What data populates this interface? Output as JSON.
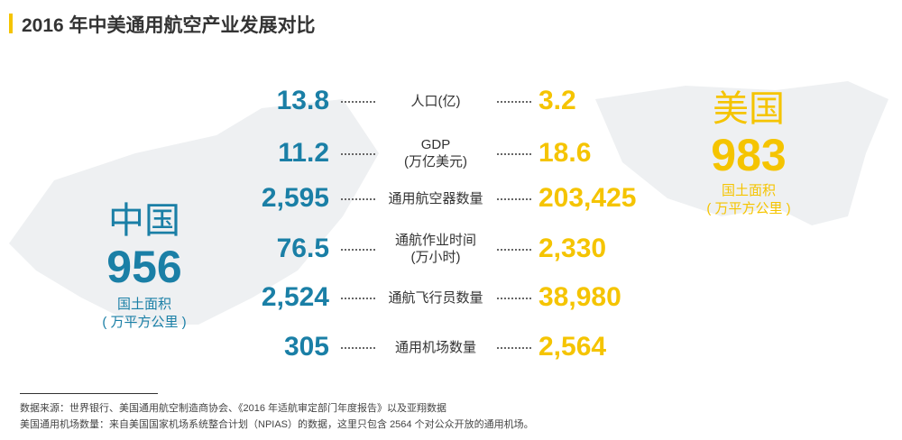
{
  "title": "2016 年中美通用航空产业发展对比",
  "china": {
    "name": "中国",
    "area": "956",
    "area_label": "国土面积",
    "area_unit": "( 万平方公里 )"
  },
  "usa": {
    "name": "美国",
    "area": "983",
    "area_label": "国土面积",
    "area_unit": "( 万平方公里 )"
  },
  "rows": [
    {
      "china": "13.8",
      "label": [
        "人口(亿)"
      ],
      "usa": "3.2"
    },
    {
      "china": "11.2",
      "label": [
        "GDP",
        "(万亿美元)"
      ],
      "usa": "18.6"
    },
    {
      "china": "2,595",
      "label": [
        "通用航空器数量"
      ],
      "usa": "203,425"
    },
    {
      "china": "76.5",
      "label": [
        "通航作业时间",
        "(万小时)"
      ],
      "usa": "2,330"
    },
    {
      "china": "2,524",
      "label": [
        "通航飞行员数量"
      ],
      "usa": "38,980"
    },
    {
      "china": "305",
      "label": [
        "通用机场数量"
      ],
      "usa": "2,564"
    }
  ],
  "footnotes": [
    "数据来源：世界银行、美国通用航空制造商协会、《2016 年适航审定部门年度报告》以及亚翔数据",
    "美国通用机场数量：来自美国国家机场系统整合计划（NPIAS）的数据，这里只包含 2564 个对公众开放的通用机场。"
  ]
}
